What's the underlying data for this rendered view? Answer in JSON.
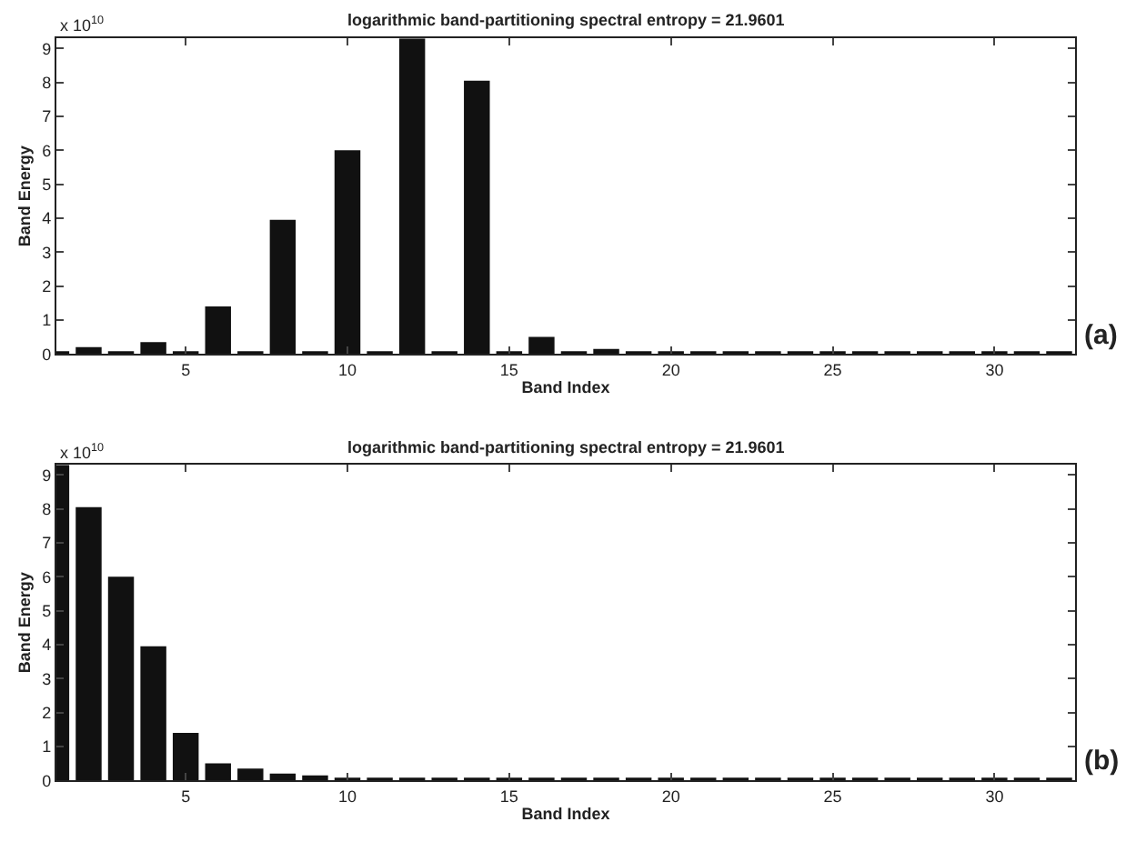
{
  "chart_data": [
    {
      "type": "bar",
      "title": "logarithmic band-partitioning spectral entropy = 21.9601",
      "xlabel": "Band Index",
      "ylabel": "Band Energy",
      "x": [
        1,
        2,
        3,
        4,
        5,
        6,
        7,
        8,
        9,
        10,
        11,
        12,
        13,
        14,
        15,
        16,
        17,
        18,
        19,
        20,
        21,
        22,
        23,
        24,
        25,
        26,
        27,
        28,
        29,
        30,
        31,
        32
      ],
      "values": [
        0.03,
        0.2,
        0.03,
        0.35,
        0.03,
        1.4,
        0.03,
        3.95,
        0.06,
        6.0,
        0.06,
        9.3,
        0.08,
        8.05,
        0.08,
        0.5,
        0.03,
        0.15,
        0.03,
        0.05,
        0.03,
        0.03,
        0.03,
        0.03,
        0.03,
        0.04,
        0.04,
        0.03,
        0.03,
        0.03,
        0.03,
        0.03
      ],
      "color": "#111111",
      "xlim": [
        1,
        32.5
      ],
      "ylim": [
        0,
        9.3
      ],
      "xticks": [
        5,
        10,
        15,
        20,
        25,
        30
      ],
      "yticks": [
        0,
        1,
        2,
        3,
        4,
        5,
        6,
        7,
        8,
        9
      ],
      "annotations": [
        "x 10$^{10}$",
        "(a)"
      ]
    },
    {
      "type": "bar",
      "title": "logarithmic band-partitioning spectral entropy = 21.9601",
      "xlabel": "Band Index",
      "ylabel": "Band Energy",
      "x": [
        1,
        2,
        3,
        4,
        5,
        6,
        7,
        8,
        9,
        10,
        11,
        12,
        13,
        14,
        15,
        16,
        17,
        18,
        19,
        20,
        21,
        22,
        23,
        24,
        25,
        26,
        27,
        28,
        29,
        30,
        31,
        32
      ],
      "values": [
        9.3,
        8.05,
        6.0,
        3.95,
        1.4,
        0.5,
        0.35,
        0.2,
        0.15,
        0.08,
        0.08,
        0.06,
        0.06,
        0.05,
        0.05,
        0.04,
        0.04,
        0.03,
        0.03,
        0.03,
        0.03,
        0.03,
        0.03,
        0.03,
        0.03,
        0.03,
        0.03,
        0.03,
        0.03,
        0.03,
        0.03,
        0.03
      ],
      "color": "#111111",
      "xlim": [
        1,
        32.5
      ],
      "ylim": [
        0,
        9.3
      ],
      "xticks": [
        5,
        10,
        15,
        20,
        25,
        30
      ],
      "yticks": [
        0,
        1,
        2,
        3,
        4,
        5,
        6,
        7,
        8,
        9
      ],
      "annotations": [
        "x 10$^{10}$",
        "(b)"
      ]
    }
  ]
}
